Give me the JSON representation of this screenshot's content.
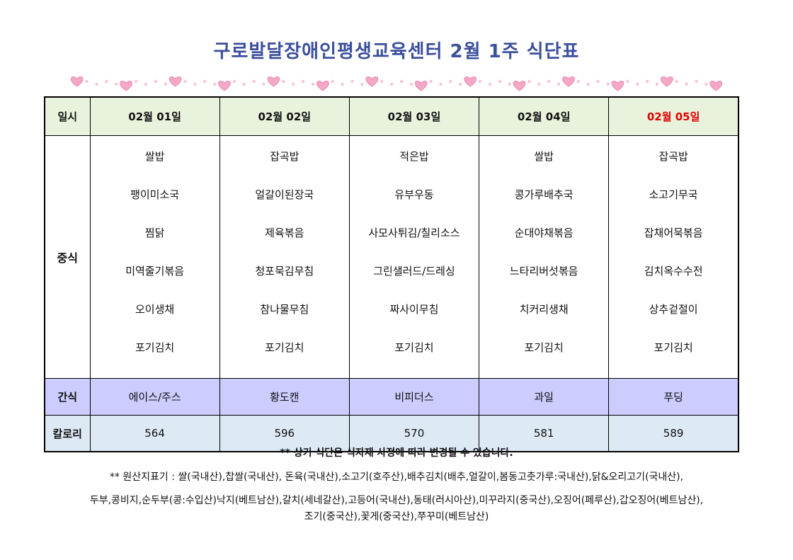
{
  "title": "구로발달장애인평생교육센터 2월 1주 식단표",
  "colors": {
    "title": "#3b4f9c",
    "header_bg": "#e9f2dc",
    "snack_bg": "#ccccff",
    "calorie_bg": "#dde9f5",
    "highlight_date": "#e00000",
    "heart": "#f4a7c6"
  },
  "decoration": {
    "icon": "heart-border-icon"
  },
  "table": {
    "corner_label": "일시",
    "dates": [
      "02월 01일",
      "02월 02일",
      "02월 03일",
      "02월 04일",
      "02월 05일"
    ],
    "lunch_label": "중식",
    "lunch": [
      [
        "쌀밥",
        "팽이미소국",
        "찜닭",
        "미역줄기볶음",
        "오이생채",
        "포기김치"
      ],
      [
        "잡곡밥",
        "얼갈이된장국",
        "제육볶음",
        "청포묵김무침",
        "참나물무침",
        "포기김치"
      ],
      [
        "적은밥",
        "유부우동",
        "사모사튀김/칠리소스",
        "그린샐러드/드레싱",
        "짜사이무침",
        "포기김치"
      ],
      [
        "쌀밥",
        "콩가루배추국",
        "순대야채볶음",
        "느타리버섯볶음",
        "치커리생채",
        "포기김치"
      ],
      [
        "잡곡밥",
        "소고기무국",
        "잡채어묵볶음",
        "김치옥수수전",
        "상추겉절이",
        "포기김치"
      ]
    ],
    "snack_label": "간식",
    "snacks": [
      "에이스/주스",
      "황도캔",
      "비피더스",
      "과일",
      "푸딩"
    ],
    "calorie_label": "칼로리",
    "calories": [
      "564",
      "596",
      "570",
      "581",
      "589"
    ]
  },
  "notes": {
    "change_notice": "** 상기 식단은 식자재 사정에 따라 변경될 수 있습니다.",
    "origin_line1": "** 원산지표기 : 쌀(국내산),찹쌀(국내산), 돈육(국내산),소고기(호주산),배추김치(배추,얼갈이,봄동고춧가루:국내산),닭&오리고기(국내산),",
    "origin_line2": "두부,콩비지,순두부(콩:수입산)낙지(베트남산),갈치(세네갈산),고등어(국내산),동태(러시아산),미꾸라지(중국산),오징어(페루산),갑오징어(베트남산),",
    "origin_line3": "조기(중국산),꽃게(중국산),쭈꾸미(베트남산)"
  }
}
